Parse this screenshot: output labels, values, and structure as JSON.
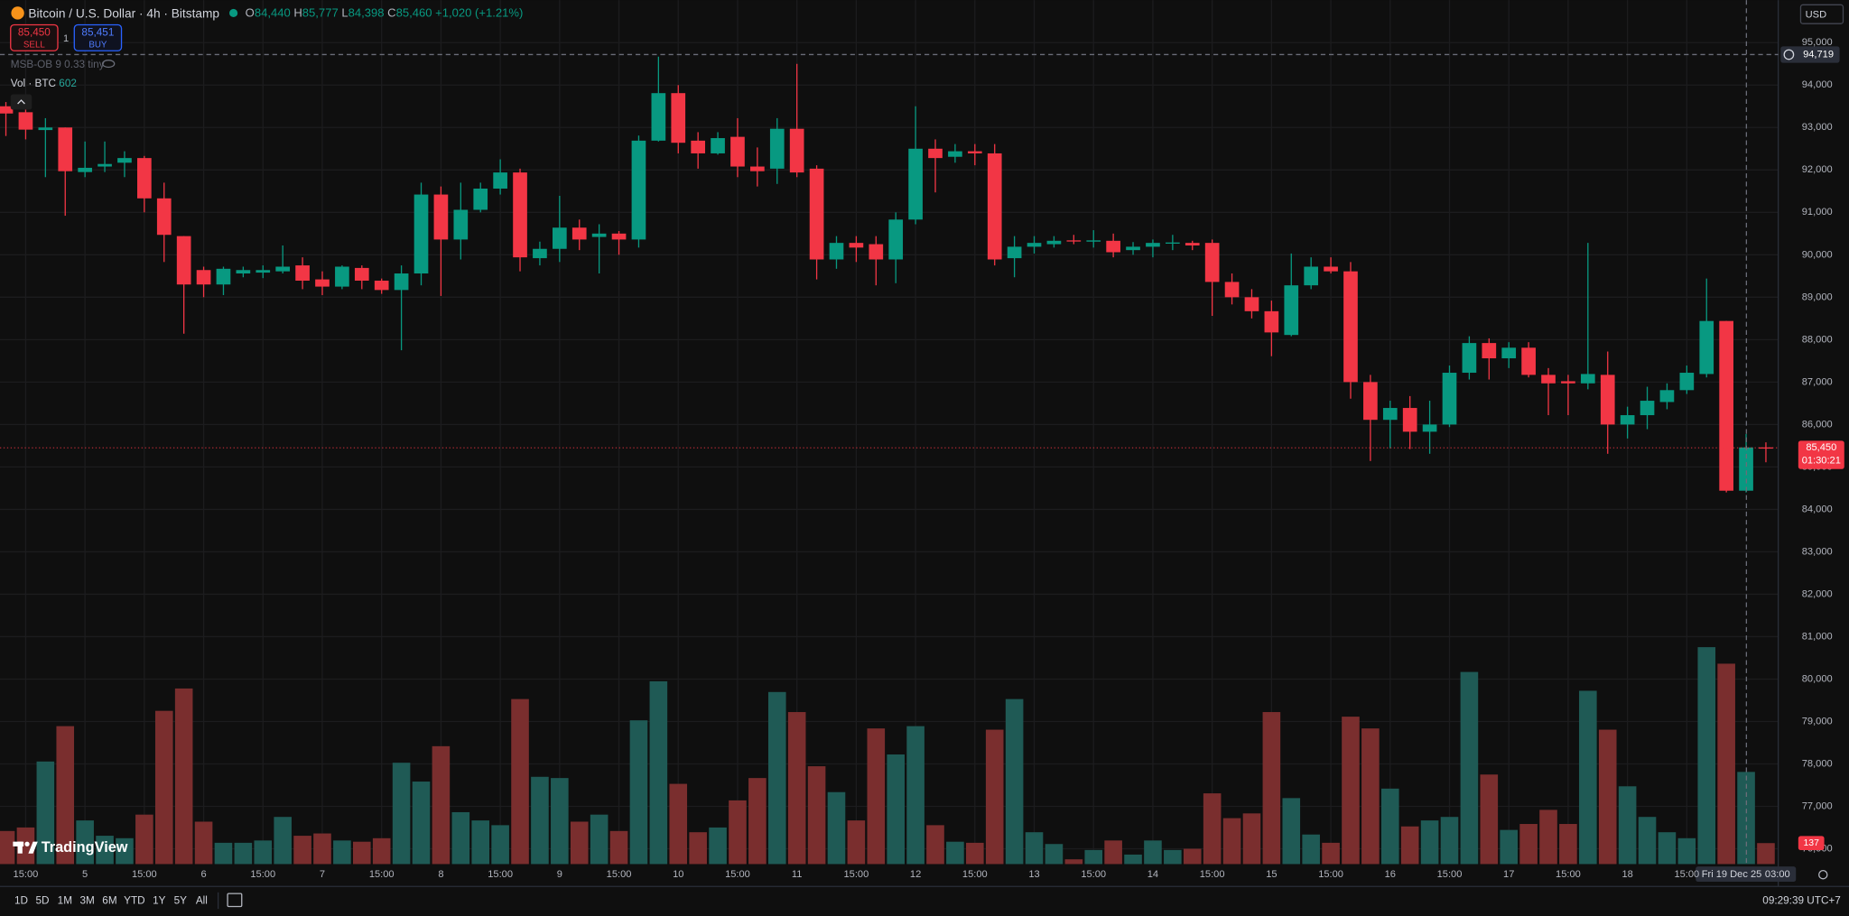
{
  "header": {
    "symbol": "Bitcoin / U.S. Dollar · 4h · Bitstamp",
    "ohlc": [
      {
        "label": "O",
        "value": "84,440"
      },
      {
        "label": "H",
        "value": "85,777"
      },
      {
        "label": "L",
        "value": "84,398"
      },
      {
        "label": "C",
        "value": "85,460"
      }
    ],
    "change": "+1,020 (+1.21%)"
  },
  "trade": {
    "sell_price": "85,450",
    "sell": "SELL",
    "spread": "1",
    "buy_price": "85,451",
    "buy": "BUY"
  },
  "indicators": {
    "msb": "MSB-OB 9 0.33 tiny",
    "volume_name": "Vol · BTC"
  },
  "currency": "USD",
  "logo": "TradingView",
  "toolbar": {
    "ranges": [
      "1D",
      "5D",
      "1M",
      "3M",
      "6M",
      "YTD",
      "1Y",
      "5Y",
      "All"
    ],
    "clock": "09:29:39 UTC+7"
  },
  "chart_data": {
    "type": "candlestick",
    "categories": [
      null,
      "15:00",
      null,
      null,
      "5",
      null,
      null,
      "15:00",
      null,
      null,
      "6",
      null,
      null,
      "15:00",
      null,
      null,
      "7",
      null,
      null,
      "15:00",
      null,
      null,
      "8",
      null,
      null,
      "15:00",
      null,
      null,
      "9",
      null,
      null,
      "15:00",
      null,
      null,
      "10",
      null,
      null,
      "15:00",
      null,
      null,
      "11",
      null,
      null,
      "15:00",
      null,
      null,
      "12",
      null,
      null,
      "15:00",
      null,
      null,
      "13",
      null,
      null,
      "15:00",
      null,
      null,
      "14",
      null,
      null,
      "15:00",
      null,
      null,
      "15",
      null,
      null,
      "15:00",
      null,
      null,
      "16",
      null,
      null,
      "15:00",
      null,
      null,
      "17",
      null,
      null,
      "15:00",
      null,
      null,
      "18",
      null,
      null,
      "15:00",
      null,
      null,
      null,
      null
    ],
    "open": [
      93500,
      93360,
      92940,
      93000,
      91950,
      92080,
      92170,
      92280,
      91330,
      90440,
      89640,
      89300,
      89560,
      89580,
      89610,
      89750,
      89420,
      89250,
      89690,
      89390,
      89170,
      89560,
      91420,
      90360,
      91060,
      91560,
      91940,
      89920,
      90140,
      90640,
      90420,
      90500,
      90360,
      92690,
      93810,
      92690,
      92390,
      92780,
      92080,
      92030,
      92970,
      92030,
      89890,
      90280,
      90250,
      89890,
      90830,
      92500,
      92310,
      92440,
      92390,
      89920,
      90190,
      90250,
      90340,
      90310,
      90330,
      90110,
      90190,
      90270,
      90280,
      90280,
      89360,
      89000,
      88670,
      88110,
      89280,
      89720,
      89610,
      87000,
      86110,
      86390,
      85830,
      86000,
      87220,
      87920,
      87560,
      87810,
      87170,
      87020,
      86970,
      87170,
      86000,
      86220,
      86530,
      86810,
      87190,
      88440,
      84440,
      85460
    ],
    "high": [
      93600,
      93640,
      93220,
      93000,
      92670,
      92670,
      92440,
      92330,
      91700,
      90440,
      89720,
      89720,
      89720,
      89750,
      90220,
      89940,
      89610,
      89750,
      89750,
      89440,
      89750,
      91700,
      91610,
      91700,
      91700,
      92250,
      92030,
      90310,
      91390,
      90830,
      90720,
      90560,
      92810,
      94670,
      94000,
      92890,
      92890,
      93220,
      92530,
      93220,
      94500,
      92110,
      90440,
      90440,
      90440,
      91000,
      93500,
      92720,
      92610,
      92610,
      92610,
      90440,
      90440,
      90440,
      90470,
      90580,
      90500,
      90300,
      90360,
      90470,
      90330,
      90360,
      89560,
      89190,
      88920,
      90030,
      89940,
      89940,
      89830,
      87170,
      86560,
      86670,
      86560,
      87390,
      88080,
      88030,
      87940,
      87940,
      87330,
      87170,
      90280,
      87720,
      86420,
      86890,
      86970,
      87390,
      89440,
      88440,
      85777,
      85580
    ],
    "low": [
      92800,
      92720,
      91830,
      90920,
      91830,
      91950,
      91830,
      91000,
      89830,
      88140,
      89000,
      89050,
      89470,
      89450,
      89560,
      89190,
      89050,
      89190,
      89190,
      89080,
      87750,
      89280,
      89030,
      89890,
      91000,
      91420,
      89610,
      89750,
      89830,
      90110,
      89560,
      90000,
      90170,
      92670,
      92390,
      92030,
      92360,
      91830,
      91610,
      91670,
      91830,
      89420,
      89670,
      89830,
      89280,
      89330,
      90720,
      91470,
      92170,
      92110,
      89750,
      89470,
      90030,
      90170,
      90250,
      90170,
      89940,
      90000,
      89940,
      90110,
      90110,
      88560,
      88830,
      88500,
      87610,
      88080,
      89190,
      89560,
      86610,
      85140,
      85440,
      85420,
      85310,
      85940,
      87060,
      87060,
      87330,
      87110,
      86220,
      86220,
      86830,
      85310,
      85670,
      85890,
      86360,
      86720,
      87110,
      84400,
      84398,
      85110
    ],
    "close": [
      93330,
      92950,
      93000,
      91970,
      92050,
      92140,
      92280,
      91330,
      90470,
      89300,
      89300,
      89670,
      89640,
      89640,
      89720,
      89390,
      89250,
      89720,
      89390,
      89170,
      89560,
      91420,
      90360,
      91060,
      91560,
      91940,
      89940,
      90140,
      90640,
      90360,
      90500,
      90360,
      92690,
      93810,
      92640,
      92390,
      92750,
      92080,
      91970,
      92970,
      91940,
      89890,
      90280,
      90170,
      89890,
      90830,
      92500,
      92280,
      92440,
      92390,
      89890,
      90190,
      90280,
      90330,
      90320,
      90340,
      90060,
      90190,
      90280,
      90290,
      90220,
      89360,
      89000,
      88670,
      88170,
      89280,
      89720,
      89610,
      87000,
      86110,
      86390,
      85830,
      86000,
      87220,
      87920,
      87560,
      87810,
      87170,
      86970,
      86970,
      87190,
      86000,
      86220,
      86560,
      86810,
      87220,
      88440,
      84440,
      85460,
      85450
    ],
    "volume": [
      216,
      239,
      670,
      901,
      285,
      185,
      169,
      323,
      1001,
      1147,
      277,
      139,
      139,
      154,
      308,
      185,
      200,
      154,
      146,
      169,
      662,
      539,
      770,
      339,
      285,
      254,
      1078,
      570,
      562,
      277,
      323,
      216,
      939,
      1194,
      524,
      208,
      239,
      416,
      562,
      1124,
      993,
      639,
      470,
      285,
      886,
      716,
      901,
      254,
      146,
      139,
      878,
      1078,
      208,
      131,
      31,
      92,
      154,
      62,
      154,
      92,
      100,
      462,
      300,
      331,
      993,
      431,
      193,
      139,
      963,
      886,
      493,
      246,
      285,
      308,
      1255,
      585,
      223,
      262,
      354,
      262,
      1132,
      878,
      508,
      308,
      208,
      169,
      1417,
      1309,
      602,
      137
    ],
    "up_color": "#089981",
    "down_color": "#f23645",
    "volume_up_color": "#1f5a55",
    "volume_down_color": "#7a2e2e",
    "ylim": [
      75640,
      95170
    ],
    "yticks": [
      {
        "value": 95000,
        "label": "95,000"
      },
      {
        "value": 94000,
        "label": "94,000"
      },
      {
        "value": 93000,
        "label": "93,000"
      },
      {
        "value": 92000,
        "label": "92,000"
      },
      {
        "value": 91000,
        "label": "91,000"
      },
      {
        "value": 90000,
        "label": "90,000"
      },
      {
        "value": 89000,
        "label": "89,000"
      },
      {
        "value": 88000,
        "label": "88,000"
      },
      {
        "value": 87000,
        "label": "87,000"
      },
      {
        "value": 86000,
        "label": "86,000"
      },
      {
        "value": 85000,
        "label": "85,000"
      },
      {
        "value": 84000,
        "label": "84,000"
      },
      {
        "value": 83000,
        "label": "83,000"
      },
      {
        "value": 82000,
        "label": "82,000"
      },
      {
        "value": 81000,
        "label": "81,000"
      },
      {
        "value": 80000,
        "label": "80,000"
      },
      {
        "value": 79000,
        "label": "79,000"
      },
      {
        "value": 78000,
        "label": "78,000"
      },
      {
        "value": 77000,
        "label": "77,000"
      },
      {
        "value": 76000,
        "label": "76,000"
      }
    ],
    "volume_ylim": [
      0,
      1500
    ],
    "grid": true,
    "last_price": {
      "value": 85450,
      "label": "85,450"
    },
    "countdown": "01:30:21",
    "crosshair_price": {
      "value": 94719,
      "label": "94,719"
    },
    "crosshair_time": {
      "date": "Fri 19 Dec 25",
      "time": "03:00"
    }
  }
}
